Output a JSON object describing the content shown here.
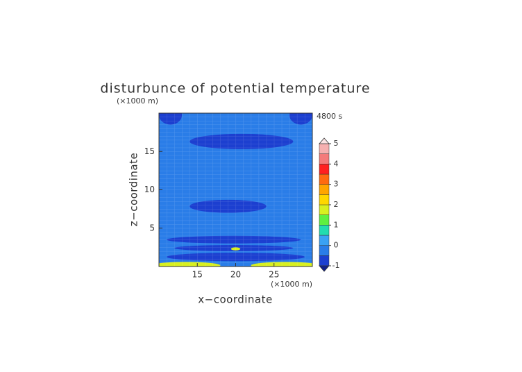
{
  "chart_data": {
    "type": "contour",
    "title": "disturbunce of potential temperature",
    "time_label": "4800 s",
    "x_label": "x−coordinate",
    "y_label": "z−coordinate",
    "x_unit": "(×1000 m)",
    "y_unit": "(×1000 m)",
    "xlim": [
      10,
      30
    ],
    "xticks": [
      15,
      20,
      25
    ],
    "ylim": [
      0,
      20
    ],
    "yticks": [
      5,
      10,
      15
    ],
    "levels": [
      -1,
      -0.5,
      0,
      0.5,
      1,
      1.5,
      2,
      2.5,
      3,
      3.5,
      4,
      4.5,
      5
    ],
    "colors": [
      "#1c3fd0",
      "#2a7de8",
      "#3aa2f4",
      "#22dcb0",
      "#5ef040",
      "#d8f020",
      "#ffd700",
      "#ffa500",
      "#ff6a10",
      "#ff2020",
      "#f47a7a",
      "#f6b0b0"
    ],
    "under_color": "#10208a",
    "over_color": "#fbe4e4",
    "colorbar_ticks": [
      -1,
      0,
      1,
      2,
      3,
      4,
      5
    ],
    "background_value": -0.25,
    "features": [
      {
        "xlim": [
          10,
          13
        ],
        "zlim": [
          18.5,
          21
        ],
        "value": -0.6
      },
      {
        "xlim": [
          27,
          30
        ],
        "zlim": [
          18.5,
          21
        ],
        "value": -0.6
      },
      {
        "xlim": [
          14,
          27.5
        ],
        "zlim": [
          15.3,
          17.3
        ],
        "value": -0.6
      },
      {
        "xlim": [
          14,
          24
        ],
        "zlim": [
          7,
          8.7
        ],
        "value": -0.6
      },
      {
        "xlim": [
          11,
          28.5
        ],
        "zlim": [
          3,
          4
        ],
        "value": -0.6
      },
      {
        "xlim": [
          12,
          27.5
        ],
        "zlim": [
          2,
          2.8
        ],
        "value": -0.6
      },
      {
        "xlim": [
          11,
          29
        ],
        "zlim": [
          0.7,
          1.8
        ],
        "value": -0.9
      },
      {
        "xlim": [
          19.4,
          20.6
        ],
        "zlim": [
          2.1,
          2.5
        ],
        "value": 1.8
      },
      {
        "xlim": [
          9,
          18
        ],
        "zlim": [
          -0.3,
          0.6
        ],
        "value": 1.8
      },
      {
        "xlim": [
          22,
          31
        ],
        "zlim": [
          -0.3,
          0.6
        ],
        "value": 1.8
      }
    ]
  }
}
